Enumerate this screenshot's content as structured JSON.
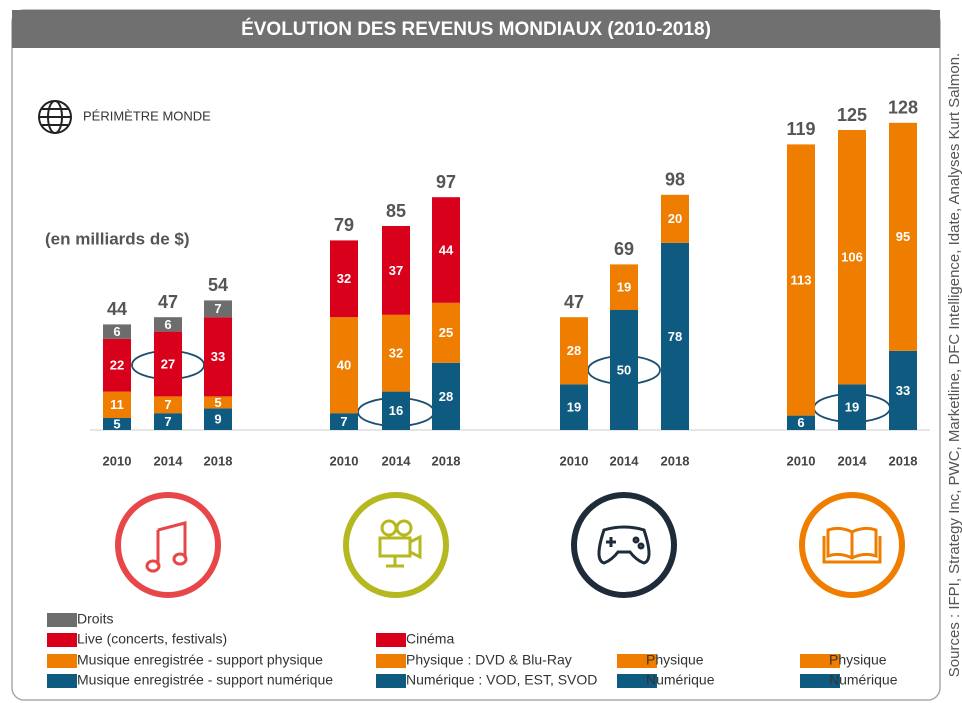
{
  "title": "ÉVOLUTION DES REVENUS MONDIAUX (2010-2018)",
  "scope": "PÉRIMÈTRE MONDE",
  "unit": "(en milliards de $)",
  "source": "Sources : IFPI, Strategy Inc, PWC, Marketline, DFC Intelligence, Idate, Analyses Kurt Salmon.",
  "chart_data": [
    {
      "type": "bar",
      "stacked": true,
      "categories": [
        "2010",
        "2014",
        "2018"
      ],
      "totals": [
        44,
        47,
        54
      ],
      "series": [
        {
          "name": "Musique enregistrée - support numérique",
          "color": "#0e5a80",
          "values": [
            5,
            7,
            9
          ]
        },
        {
          "name": "Musique enregistrée - support physique",
          "color": "#ef7d00",
          "values": [
            11,
            7,
            5
          ]
        },
        {
          "name": "Live (concerts, festivals)",
          "color": "#d9001b",
          "values": [
            22,
            27,
            33
          ]
        },
        {
          "name": "Droits",
          "color": "#6d6d6d",
          "values": [
            6,
            6,
            7
          ]
        }
      ]
    },
    {
      "type": "bar",
      "stacked": true,
      "categories": [
        "2010",
        "2014",
        "2018"
      ],
      "totals": [
        79,
        85,
        97
      ],
      "series": [
        {
          "name": "Numérique : VOD, EST, SVOD",
          "color": "#0e5a80",
          "values": [
            7,
            16,
            28
          ]
        },
        {
          "name": "Physique : DVD & Blu-Ray",
          "color": "#ef7d00",
          "values": [
            40,
            32,
            25
          ]
        },
        {
          "name": "Cinéma",
          "color": "#d9001b",
          "values": [
            32,
            37,
            44
          ]
        }
      ]
    },
    {
      "type": "bar",
      "stacked": true,
      "categories": [
        "2010",
        "2014",
        "2018"
      ],
      "totals": [
        47,
        69,
        98
      ],
      "series": [
        {
          "name": "Numérique",
          "color": "#0e5a80",
          "values": [
            19,
            50,
            78
          ]
        },
        {
          "name": "Physique",
          "color": "#ef7d00",
          "values": [
            28,
            19,
            20
          ]
        }
      ]
    },
    {
      "type": "bar",
      "stacked": true,
      "categories": [
        "2010",
        "2014",
        "2018"
      ],
      "totals": [
        119,
        125,
        128
      ],
      "series": [
        {
          "name": "Numérique",
          "color": "#0e5a80",
          "values": [
            6,
            19,
            33
          ]
        },
        {
          "name": "Physique",
          "color": "#ef7d00",
          "values": [
            113,
            106,
            95
          ]
        }
      ]
    }
  ]
}
